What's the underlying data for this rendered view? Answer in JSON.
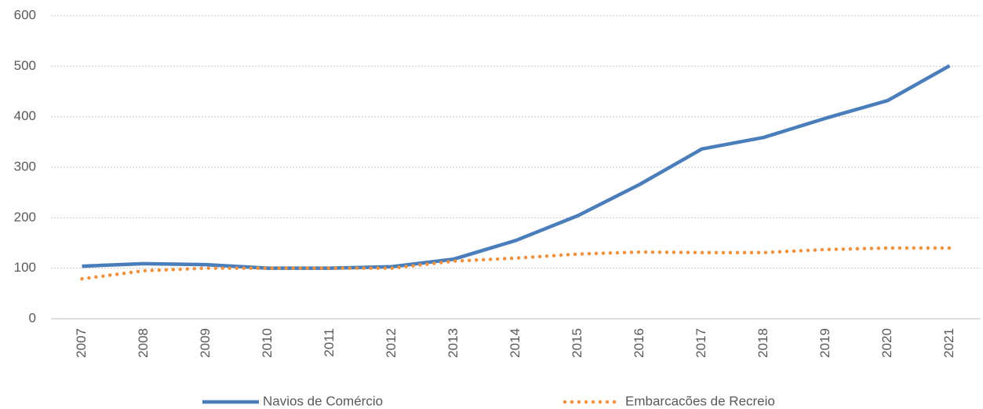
{
  "chart_data": {
    "type": "line",
    "categories": [
      "2007",
      "2008",
      "2009",
      "2010",
      "2011",
      "2012",
      "2013",
      "2014",
      "2015",
      "2016",
      "2017",
      "2018",
      "2019",
      "2020",
      "2021"
    ],
    "series": [
      {
        "name": "Navios de Comércio",
        "color": "#4a7ebb",
        "style": "solid",
        "values": [
          104,
          109,
          107,
          100,
          100,
          103,
          118,
          155,
          204,
          266,
          336,
          359,
          397,
          432,
          501
        ]
      },
      {
        "name": "Embarcacões de Recreio",
        "color": "#f0913d",
        "style": "dotted",
        "values": [
          79,
          95,
          100,
          100,
          100,
          100,
          114,
          120,
          128,
          132,
          131,
          131,
          137,
          140,
          140
        ]
      }
    ],
    "ylim": [
      0,
      600
    ],
    "yticks": [
      0,
      100,
      200,
      300,
      400,
      500,
      600
    ],
    "grid": true,
    "legend": "bottom"
  }
}
